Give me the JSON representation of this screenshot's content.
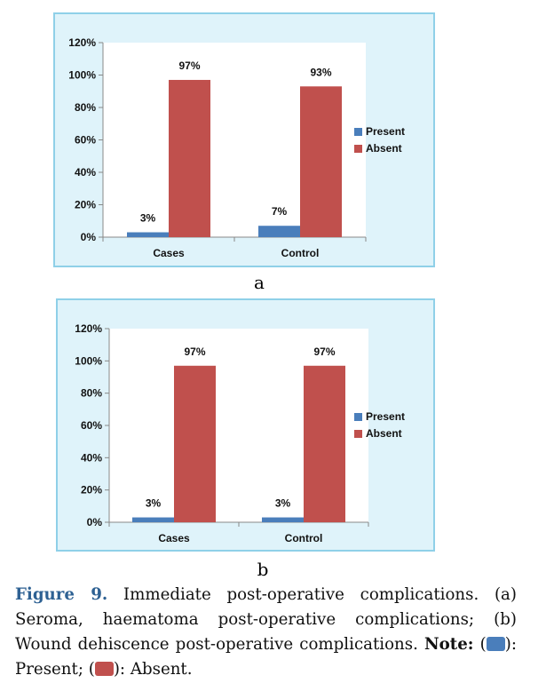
{
  "chart_data": [
    {
      "type": "bar",
      "panel": "a",
      "categories": [
        "Cases",
        "Control"
      ],
      "series": [
        {
          "name": "Present",
          "values": [
            3,
            7
          ],
          "labels": [
            "3%",
            "7%"
          ],
          "color": "#4a7ebb"
        },
        {
          "name": "Absent",
          "values": [
            97,
            93
          ],
          "labels": [
            "97%",
            "93%"
          ],
          "color": "#c0504d"
        }
      ],
      "yticks": [
        "0%",
        "20%",
        "40%",
        "60%",
        "80%",
        "100%",
        "120%"
      ],
      "ylim": [
        0,
        120
      ],
      "legend": "right",
      "grid": false
    },
    {
      "type": "bar",
      "panel": "b",
      "categories": [
        "Cases",
        "Control"
      ],
      "series": [
        {
          "name": "Present",
          "values": [
            3,
            3
          ],
          "labels": [
            "3%",
            "3%"
          ],
          "color": "#4a7ebb"
        },
        {
          "name": "Absent",
          "values": [
            97,
            97
          ],
          "labels": [
            "97%",
            "97%"
          ],
          "color": "#c0504d"
        }
      ],
      "yticks": [
        "0%",
        "20%",
        "40%",
        "60%",
        "80%",
        "100%",
        "120%"
      ],
      "ylim": [
        0,
        120
      ],
      "legend": "right",
      "grid": false
    }
  ],
  "subfigure_labels": [
    "a",
    "b"
  ],
  "caption": {
    "figure_label": "Figure 9.",
    "text": " Immediate post-operative complications. (a) Seroma, haematoma post-operative complications; (b) Wound dehiscence post-operative complications. ",
    "note_label": "Note:",
    "open_paren": " (",
    "present_text": "): Present; (",
    "absent_text": "): Absent."
  },
  "colors": {
    "panel_background": "#dff3fa",
    "panel_border": "#8fd0e8",
    "present": "#4a7ebb",
    "absent": "#c0504d",
    "figure_label": "#2e6193"
  }
}
